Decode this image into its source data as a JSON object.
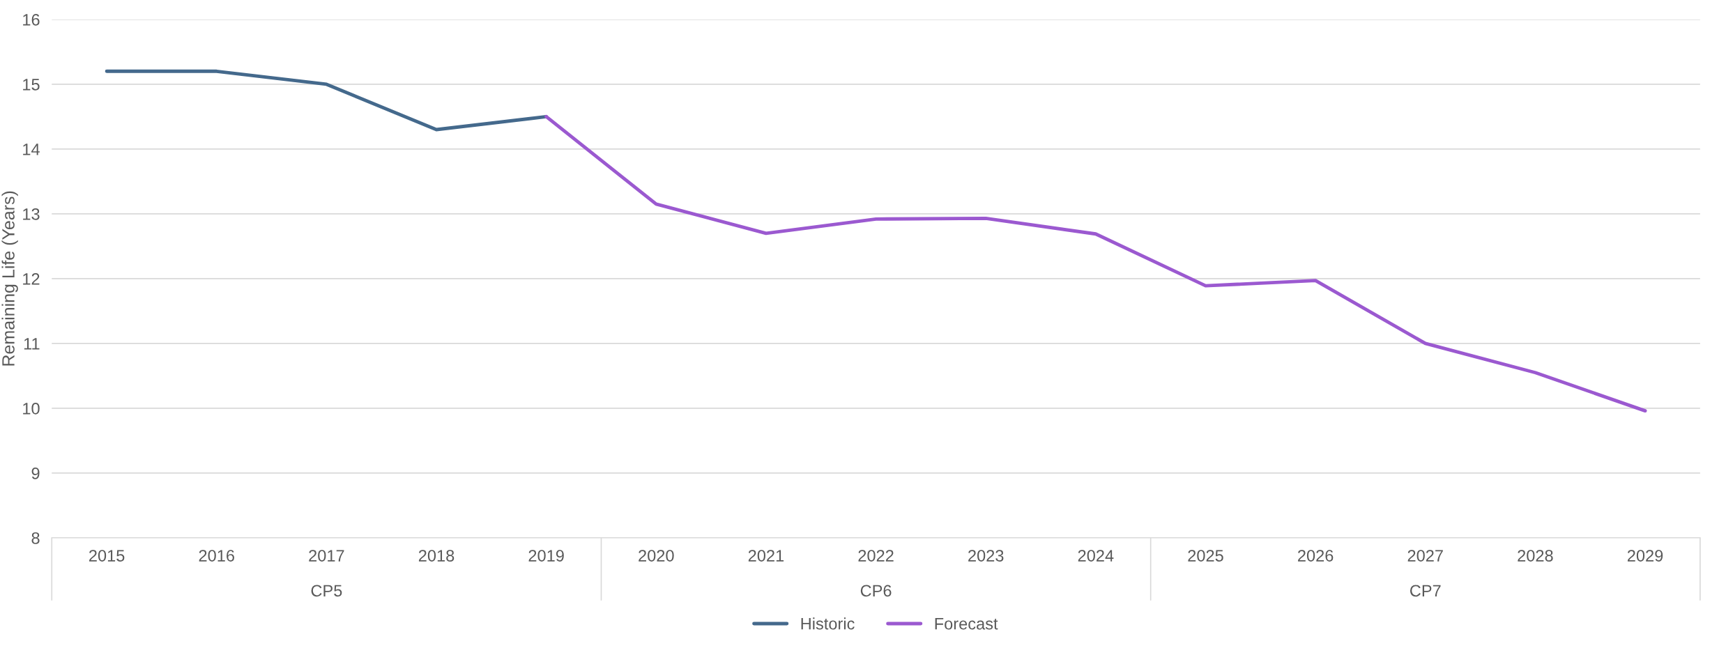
{
  "chart_data": {
    "type": "line",
    "ylabel": "Remaining Life (Years)",
    "categories": [
      "2015",
      "2016",
      "2017",
      "2018",
      "2019",
      "2020",
      "2021",
      "2022",
      "2023",
      "2024",
      "2025",
      "2026",
      "2027",
      "2028",
      "2029"
    ],
    "series": [
      {
        "name": "Historic",
        "color": "#44698c",
        "values": [
          15.2,
          15.2,
          15.0,
          14.3,
          14.5,
          null,
          null,
          null,
          null,
          null,
          null,
          null,
          null,
          null,
          null
        ]
      },
      {
        "name": "Forecast",
        "color": "#9b59d0",
        "values": [
          null,
          null,
          null,
          null,
          14.5,
          13.15,
          12.7,
          12.92,
          12.93,
          12.69,
          11.89,
          11.97,
          11.0,
          10.55,
          9.96
        ]
      }
    ],
    "ylim": [
      8,
      16
    ],
    "yticks": [
      8,
      9,
      10,
      11,
      12,
      13,
      14,
      15,
      16
    ],
    "grid": "y",
    "legend": "bottom",
    "line_style": "solid",
    "marker": "none",
    "annotations": [
      "CP5",
      "CP6",
      "CP7"
    ]
  }
}
